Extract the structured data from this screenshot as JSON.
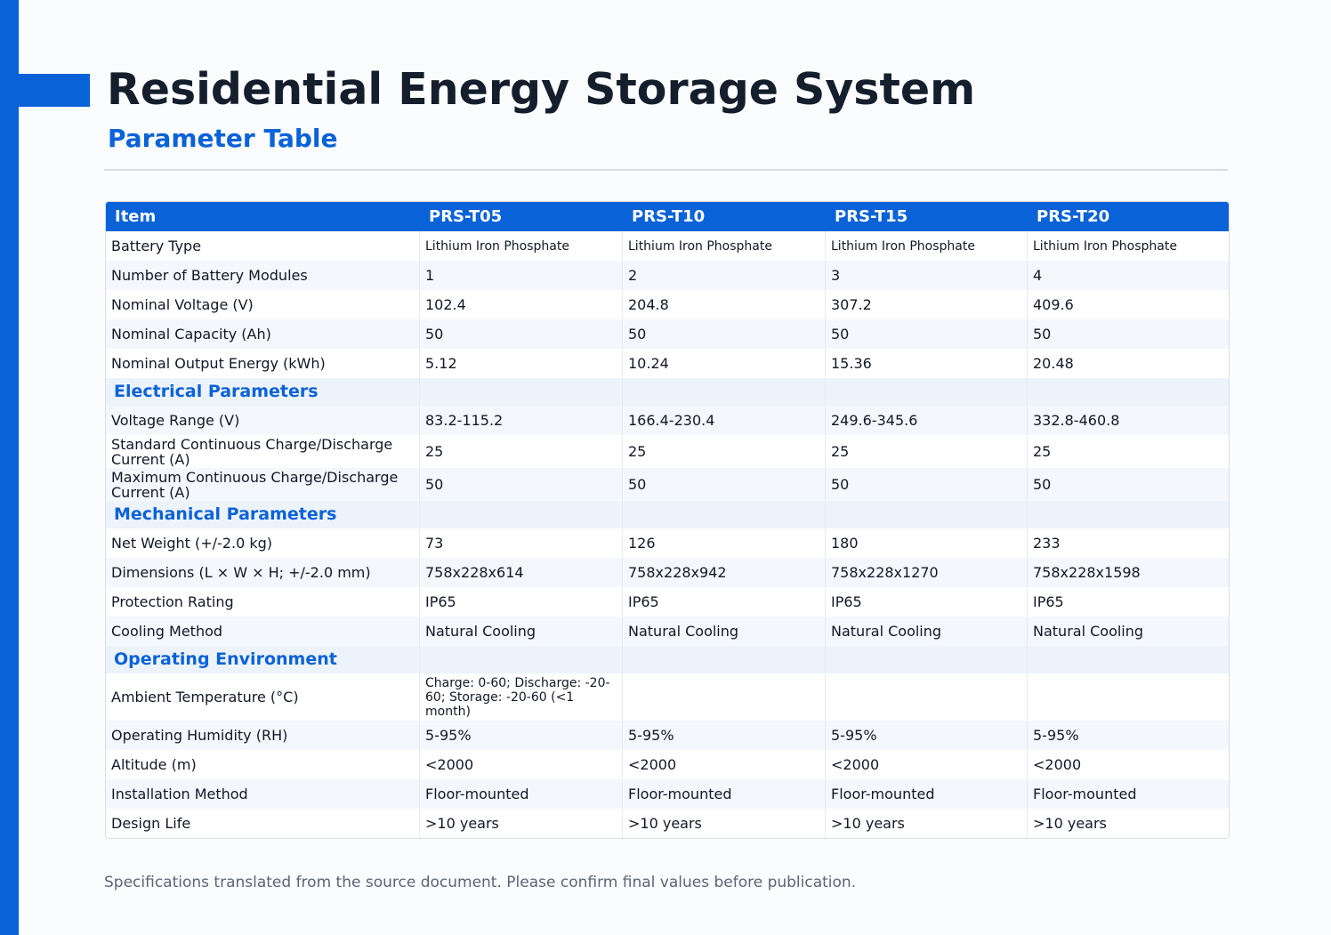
{
  "header": {
    "title": "Residential Energy Storage System",
    "subtitle": "Parameter Table"
  },
  "table": {
    "columns": [
      "Item",
      "PRS-T05",
      "PRS-T10",
      "PRS-T15",
      "PRS-T20"
    ],
    "rows": [
      [
        "Battery Type",
        "Lithium Iron Phosphate",
        "Lithium Iron Phosphate",
        "Lithium Iron Phosphate",
        "Lithium Iron Phosphate"
      ],
      [
        "Number of Battery Modules",
        "1",
        "2",
        "3",
        "4"
      ],
      [
        "Nominal Voltage (V)",
        "102.4",
        "204.8",
        "307.2",
        "409.6"
      ],
      [
        "Nominal Capacity (Ah)",
        "50",
        "50",
        "50",
        "50"
      ],
      [
        "Nominal Output Energy (kWh)",
        "5.12",
        "10.24",
        "15.36",
        "20.48"
      ],
      {
        "section": "Electrical Parameters"
      },
      [
        "Voltage Range (V)",
        "83.2-115.2",
        "166.4-230.4",
        "249.6-345.6",
        "332.8-460.8"
      ],
      [
        "Standard Continuous Charge/Discharge Current (A)",
        "25",
        "25",
        "25",
        "25"
      ],
      [
        "Maximum Continuous Charge/Discharge Current (A)",
        "50",
        "50",
        "50",
        "50"
      ],
      {
        "section": "Mechanical Parameters"
      },
      [
        "Net Weight (+/-2.0 kg)",
        "73",
        "126",
        "180",
        "233"
      ],
      [
        "Dimensions (L × W × H; +/-2.0 mm)",
        "758x228x614",
        "758x228x942",
        "758x228x1270",
        "758x228x1598"
      ],
      [
        "Protection Rating",
        "IP65",
        "IP65",
        "IP65",
        "IP65"
      ],
      [
        "Cooling Method",
        "Natural Cooling",
        "Natural Cooling",
        "Natural Cooling",
        "Natural Cooling"
      ],
      {
        "section": "Operating Environment"
      },
      [
        "Ambient Temperature (°C)",
        "Charge: 0-60; Discharge: -20-60; Storage: -20-60 (<1 month)"
      ],
      [
        "Operating Humidity (RH)",
        "5-95%",
        "5-95%",
        "5-95%",
        "5-95%"
      ],
      [
        "Altitude (m)",
        "<2000",
        "<2000",
        "<2000",
        "<2000"
      ],
      [
        "Installation Method",
        "Floor-mounted",
        "Floor-mounted",
        "Floor-mounted",
        "Floor-mounted"
      ],
      [
        "Design Life",
        ">10 years",
        ">10 years",
        ">10 years",
        ">10 years"
      ]
    ]
  },
  "footnote": "Specifications translated from the source document. Please confirm final values before publication."
}
